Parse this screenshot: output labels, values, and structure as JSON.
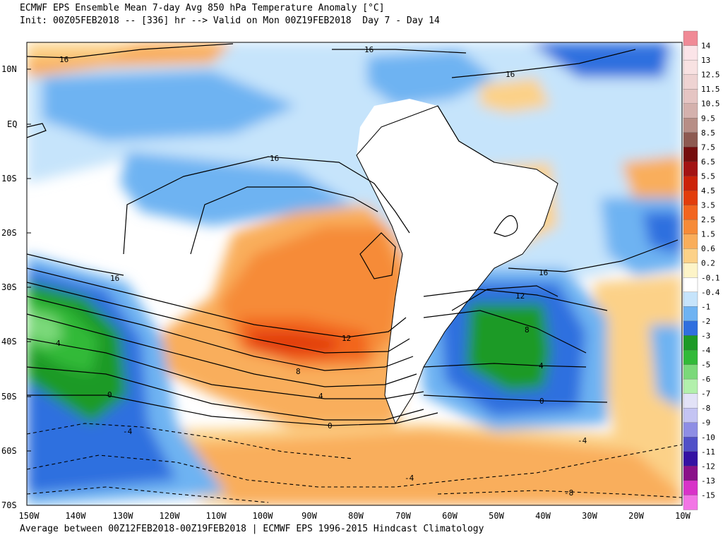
{
  "header": {
    "title_line1": "ECMWF EPS Ensemble Mean 7-day Avg 850 hPa Temperature Anomaly [°C]",
    "title_line2": "Init: 00Z05FEB2018 -- [336] hr --> Valid on Mon 00Z19FEB2018  Day 7 - Day 14"
  },
  "footer": {
    "text": "Average between 00Z12FEB2018-00Z19FEB2018 | ECMWF EPS 1996-2015 Hindcast Climatology"
  },
  "map": {
    "lat_labels": [
      "10N",
      "EQ",
      "10S",
      "20S",
      "30S",
      "40S",
      "50S",
      "60S",
      "70S"
    ],
    "lon_labels": [
      "150W",
      "140W",
      "130W",
      "120W",
      "110W",
      "100W",
      "90W",
      "80W",
      "70W",
      "60W",
      "50W",
      "40W",
      "30W",
      "20W",
      "10W"
    ],
    "contour_labels": [
      "16",
      "16",
      "16",
      "16",
      "16",
      "16",
      "12",
      "12",
      "8",
      "8",
      "4",
      "4",
      "4",
      "0",
      "0",
      "0",
      "-4",
      "-4",
      "-4",
      "-8"
    ]
  },
  "colorbar": {
    "labels": [
      "14",
      "13",
      "12.5",
      "11.5",
      "10.5",
      "9.5",
      "8.5",
      "7.5",
      "6.5",
      "5.5",
      "4.5",
      "3.5",
      "2.5",
      "1.5",
      "0.6",
      "0.2",
      "-0.1",
      "-0.4",
      "-1",
      "-2",
      "-3",
      "-4",
      "-5",
      "-6",
      "-7",
      "-8",
      "-9",
      "-10",
      "-11",
      "-12",
      "-13",
      "-15"
    ],
    "colors": [
      "#f08a96",
      "#fbe4e8",
      "#f8e2e2",
      "#eed3d2",
      "#e5c5c3",
      "#d4b1ad",
      "#b78e86",
      "#8d5a51",
      "#750d0d",
      "#a31313",
      "#cc2208",
      "#e23d0b",
      "#f2651f",
      "#f68b38",
      "#f9ae5b",
      "#fcd188",
      "#fdf4c8",
      "#ffffff",
      "#c6e4fb",
      "#6eb3f2",
      "#2f6fdf",
      "#1c9a27",
      "#31ba39",
      "#7bd97a",
      "#b2f0ac",
      "#e2e2f7",
      "#c4c4f3",
      "#8e8ee4",
      "#5151c8",
      "#3412a3",
      "#8a1189",
      "#d833c8",
      "#f275e5"
    ]
  }
}
